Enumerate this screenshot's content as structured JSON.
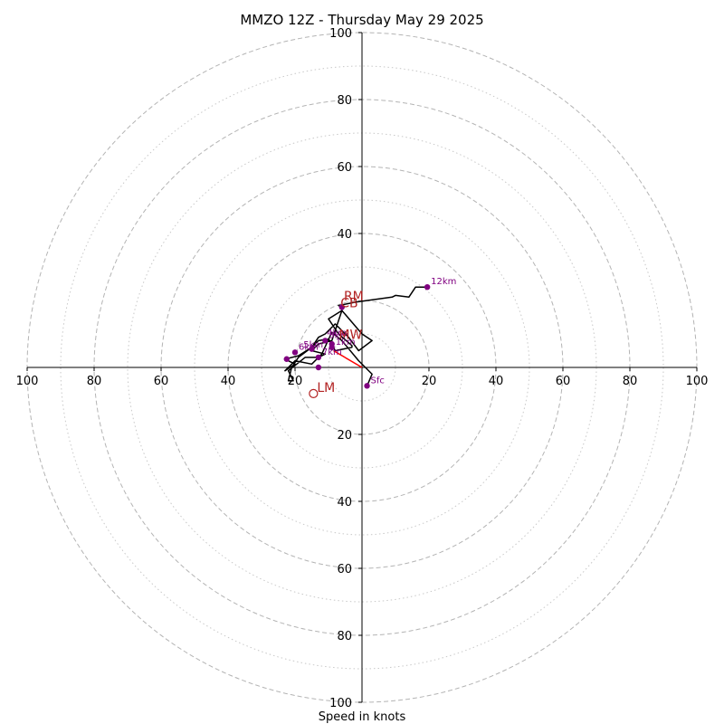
{
  "chart_data": {
    "type": "scatter",
    "subtype": "hodograph",
    "title": "MMZO 12Z - Thursday May 29 2025",
    "xlabel": "Speed in knots",
    "range": [
      -100,
      100
    ],
    "ring_major": [
      20,
      40,
      60,
      80,
      100
    ],
    "ring_minor": [
      10,
      30,
      50,
      70,
      90
    ],
    "x_tick_labels": [
      "100",
      "80",
      "60",
      "40",
      "20",
      "20",
      "40",
      "60",
      "80",
      "100"
    ],
    "y_tick_labels_top": [
      "100",
      "80",
      "60",
      "40"
    ],
    "y_tick_labels_bottom": [
      "20",
      "40",
      "60",
      "80",
      "100"
    ],
    "hodograph_trace": {
      "color": "#000000",
      "points": [
        [
          1.5,
          -5.5
        ],
        [
          3,
          -2
        ],
        [
          -1,
          2
        ],
        [
          -6,
          8
        ],
        [
          -9,
          10.5
        ],
        [
          -12,
          4
        ],
        [
          -15,
          1
        ],
        [
          -20,
          2
        ],
        [
          -23,
          -1
        ],
        [
          -20,
          1
        ],
        [
          -23,
          2.5
        ],
        [
          -19,
          3.5
        ],
        [
          -15,
          6
        ],
        [
          -13,
          8
        ],
        [
          -10,
          8.5
        ],
        [
          -9,
          7
        ],
        [
          -8,
          5
        ],
        [
          -3,
          6
        ],
        [
          -3,
          6.5
        ],
        [
          -7,
          10
        ],
        [
          -10,
          14.5
        ],
        [
          -6,
          17
        ],
        [
          0,
          10
        ],
        [
          3,
          8
        ],
        [
          -1,
          5
        ],
        [
          -4,
          9
        ],
        [
          -8,
          13
        ],
        [
          -11,
          10
        ],
        [
          -13,
          9
        ],
        [
          -15,
          6
        ],
        [
          -19,
          3
        ],
        [
          -21,
          0
        ],
        [
          -22,
          -4
        ],
        [
          -20.5,
          -4
        ],
        [
          -22,
          -1
        ],
        [
          -17,
          3
        ],
        [
          -13,
          3
        ],
        [
          -11,
          4
        ],
        [
          -15,
          5
        ],
        [
          -13,
          7
        ],
        [
          -9,
          8
        ],
        [
          -6,
          17
        ],
        [
          -6,
          18
        ],
        [
          -7,
          18.5
        ],
        [
          -2,
          19.5
        ],
        [
          9,
          21
        ],
        [
          10,
          21.5
        ],
        [
          14,
          21
        ],
        [
          16,
          24
        ],
        [
          19,
          24
        ]
      ]
    },
    "height_markers": {
      "color": "#800080",
      "points": [
        {
          "label": "Sfc",
          "x": 1.5,
          "y": -5.5
        },
        {
          "label": "1km",
          "x": -9,
          "y": 6
        },
        {
          "label": "3km",
          "x": -11,
          "y": 8
        },
        {
          "label": "6km",
          "x": -20,
          "y": 4.5
        },
        {
          "label": "",
          "x": -22.5,
          "y": 2.5
        },
        {
          "label": "7km",
          "x": -13,
          "y": 3
        },
        {
          "label": "",
          "x": -13,
          "y": 0
        },
        {
          "label": "",
          "x": -15,
          "y": 5.5
        },
        {
          "label": "",
          "x": -9,
          "y": 7
        },
        {
          "label": "",
          "x": -6,
          "y": 18
        },
        {
          "label": "12km",
          "x": 19.5,
          "y": 24
        }
      ]
    },
    "small_labels": [
      {
        "text": "4km",
        "x": -10.5,
        "y": 9.5
      },
      {
        "text": "5km",
        "x": -17.5,
        "y": 6
      }
    ],
    "shear_vector": {
      "color": "#ff0000",
      "from": [
        0,
        0
      ],
      "to": [
        -8.5,
        5
      ]
    },
    "storm_motion": {
      "color": "#b22222",
      "points": [
        {
          "label": "RM",
          "x": -6.5,
          "y": 19.5
        },
        {
          "label": "LM",
          "x": -14.5,
          "y": -7.8
        },
        {
          "label": "MW",
          "x": -8,
          "y": 8
        },
        {
          "label": "CB",
          "x": -7.5,
          "y": 17.5
        }
      ]
    }
  }
}
